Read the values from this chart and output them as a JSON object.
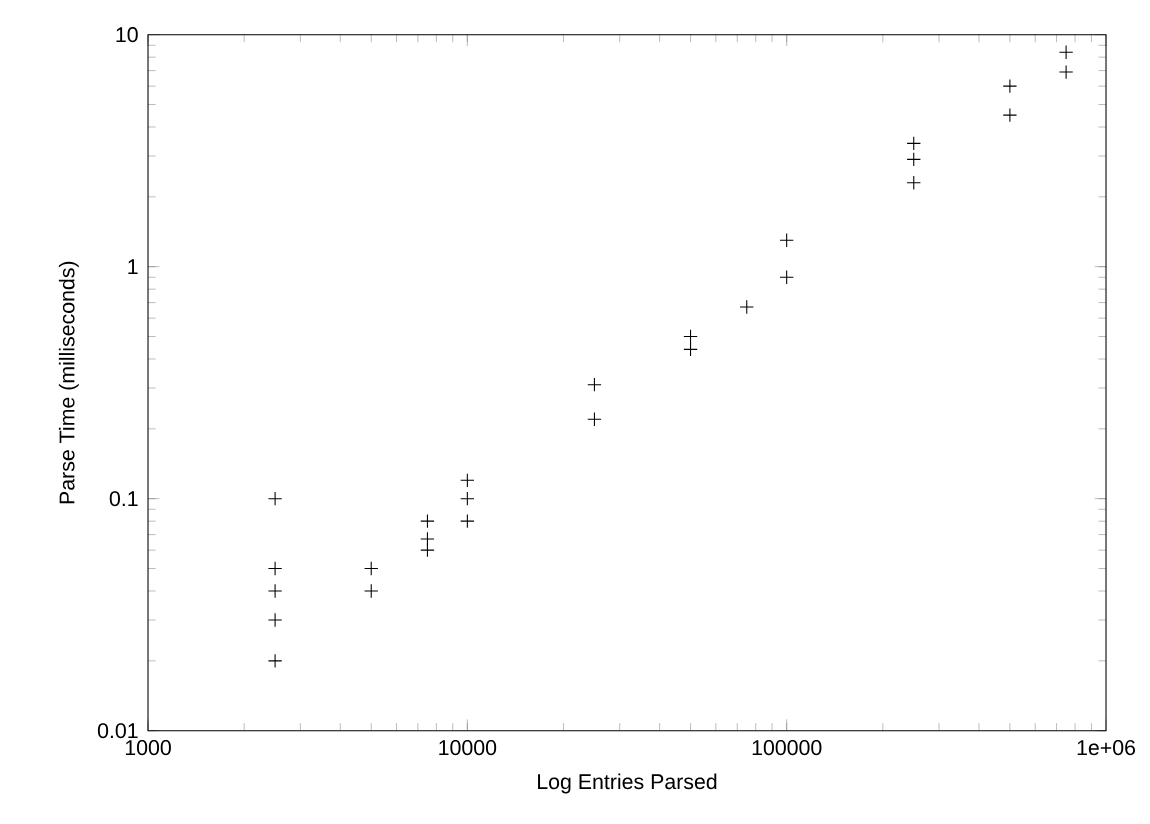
{
  "chart_data": {
    "type": "scatter",
    "xlabel": "Log Entries Parsed",
    "ylabel": "Parse Time (milliseconds)",
    "log": "xy",
    "grid": false,
    "marker": "cross",
    "xlim": [
      1000,
      1000000
    ],
    "ylim": [
      0.01,
      10
    ],
    "xticks": [
      1000,
      10000,
      100000,
      {
        "value": 1000000,
        "label": "1e+06"
      }
    ],
    "yticks": [
      0.01,
      0.1,
      1,
      10
    ],
    "series": [
      {
        "color": "#000000",
        "x": [
          2500,
          2500,
          2500,
          2500,
          2500,
          5000,
          5000,
          7500,
          7500,
          7500,
          10000,
          10000,
          10000,
          25000,
          25000,
          50000,
          50000,
          75000,
          100000,
          100000,
          250000,
          250000,
          250000,
          500000,
          500000,
          750000,
          750000
        ],
        "values": [
          0.1,
          0.05,
          0.04,
          0.03,
          0.02,
          0.05,
          0.04,
          0.08,
          0.067,
          0.06,
          0.12,
          0.1,
          0.08,
          0.31,
          0.22,
          0.5,
          0.44,
          0.67,
          1.3,
          0.9,
          3.4,
          2.9,
          2.3,
          6.0,
          4.5,
          8.4,
          6.9
        ]
      }
    ]
  }
}
